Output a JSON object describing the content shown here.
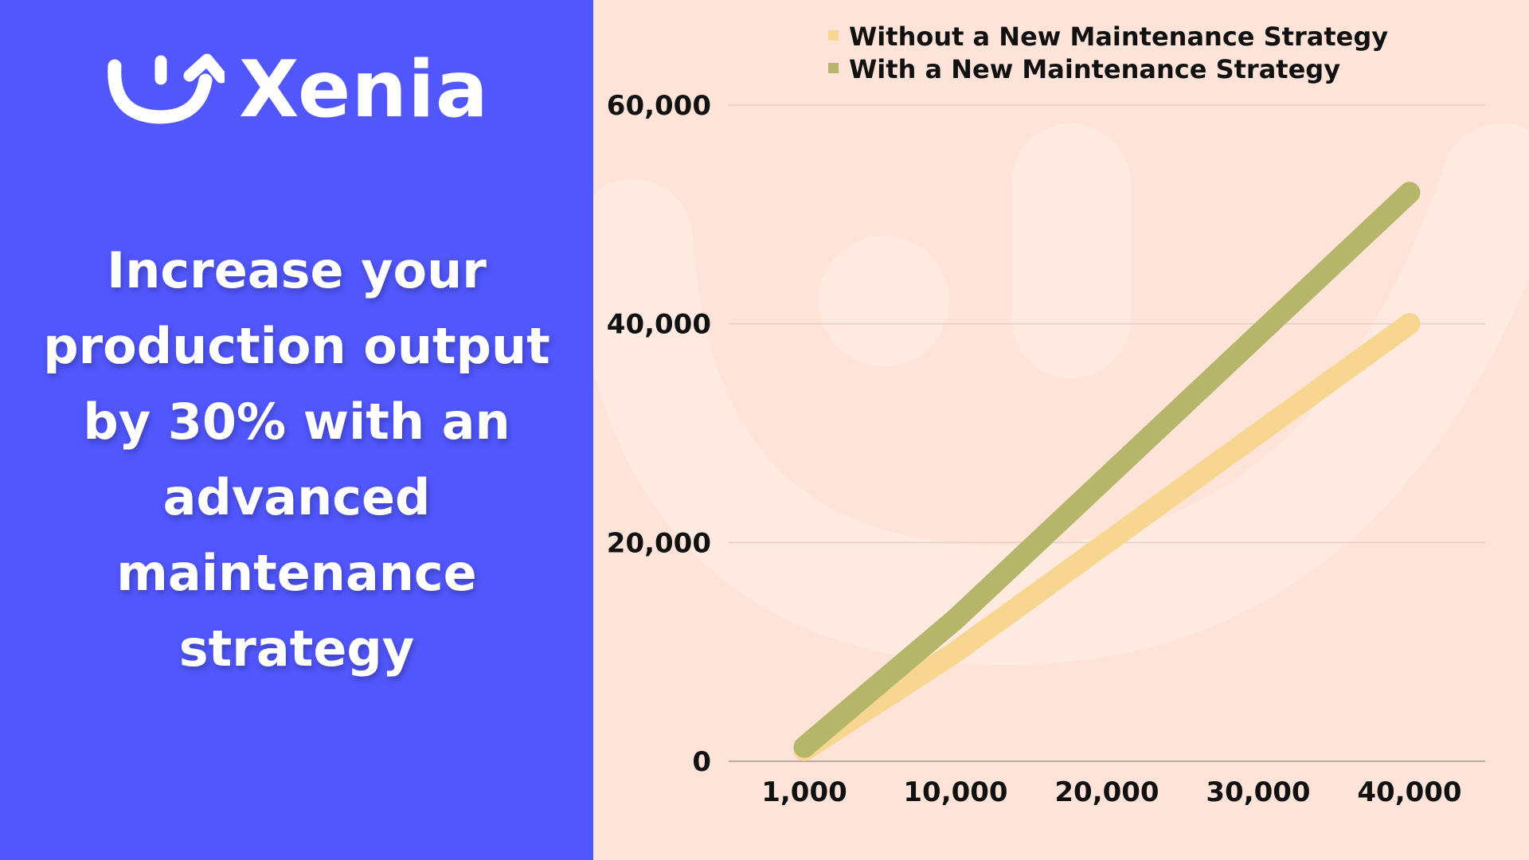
{
  "brand": {
    "name": "Xenia",
    "logo_icon": "smile-arrow-icon"
  },
  "headline": "Increase your production output by 30% with an advanced maintenance strategy",
  "colors": {
    "left_background": "#5157fd",
    "right_background": "#fde3d8",
    "without_series": "#f7d78f",
    "with_series": "#b5b66a"
  },
  "chart_data": {
    "type": "line",
    "title": "",
    "xlabel": "",
    "ylabel": "",
    "x": [
      "1,000",
      "10,000",
      "20,000",
      "30,000",
      "40,000"
    ],
    "ylim": [
      0,
      60000
    ],
    "yticks": [
      "0",
      "20,000",
      "40,000",
      "60,000"
    ],
    "ytick_values": [
      0,
      20000,
      40000,
      60000
    ],
    "grid": true,
    "legend_position": "top",
    "series": [
      {
        "name": "Without a New Maintenance Strategy",
        "values": [
          1000,
          10000,
          20000,
          30000,
          40000
        ],
        "color": "#f7d78f"
      },
      {
        "name": "With a New Maintenance Strategy",
        "values": [
          1300,
          13000,
          26000,
          39000,
          52000
        ],
        "color": "#b5b66a"
      }
    ]
  }
}
